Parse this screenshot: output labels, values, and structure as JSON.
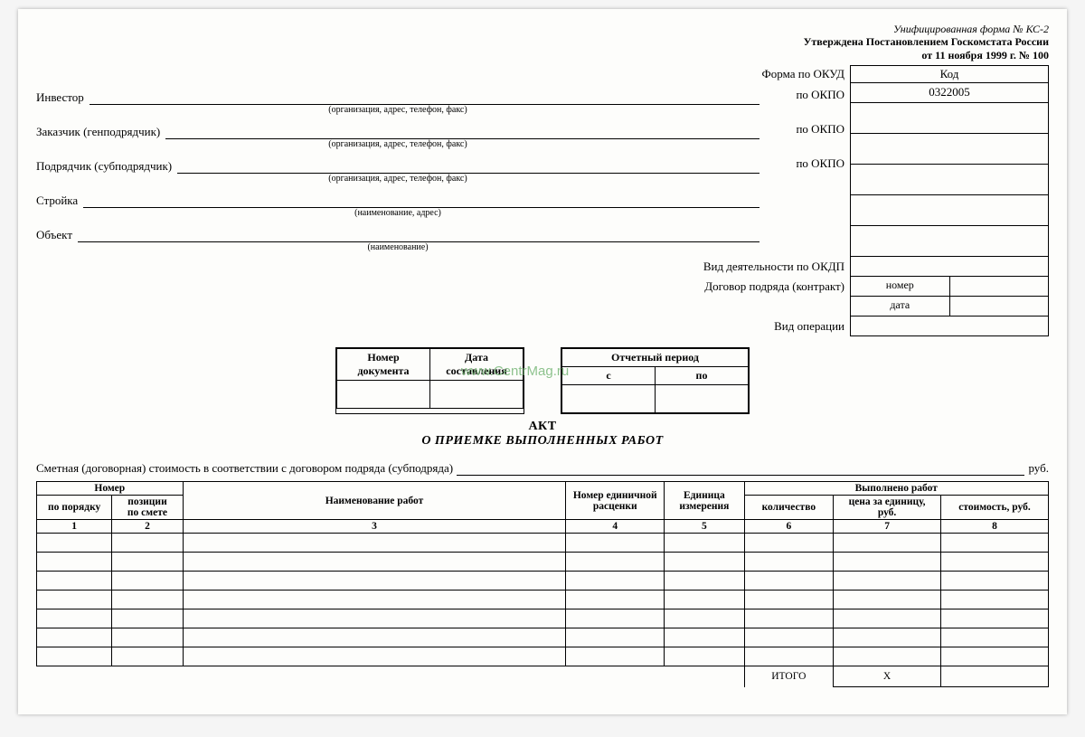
{
  "approval": {
    "line1": "Унифицированная форма № КС-2",
    "line2": "Утверждена Постановлением Госкомстата России",
    "line3": "от 11 ноября 1999 г. № 100"
  },
  "code_header": "Код",
  "okud": {
    "label": "Форма по ОКУД",
    "value": "0322005"
  },
  "fields": {
    "investor": {
      "label": "Инвестор",
      "hint": "(организация, адрес, телефон, факс)",
      "right": "по ОКПО"
    },
    "customer": {
      "label": "Заказчик (генподрядчик)",
      "hint": "(организация, адрес, телефон, факс)",
      "right": "по ОКПО"
    },
    "contractor": {
      "label": "Подрядчик (субподрядчик)",
      "hint": "(организация, адрес, телефон, факс)",
      "right": "по ОКПО"
    },
    "site": {
      "label": "Стройка",
      "hint": "(наименование, адрес)"
    },
    "object": {
      "label": "Объект",
      "hint": "(наименование)"
    }
  },
  "extra": {
    "okdp": "Вид деятельности по ОКДП",
    "contract": "Договор подряда (контракт)",
    "number": "номер",
    "date": "дата",
    "optype": "Вид операции"
  },
  "mid": {
    "doc_num": "Номер\nдокумента",
    "doc_date": "Дата\nсоставления",
    "period": "Отчетный период",
    "from": "с",
    "to": "по"
  },
  "title": {
    "l1": "АКТ",
    "l2": "О ПРИЕМКЕ ВЫПОЛНЕННЫХ РАБОТ"
  },
  "cost_line": {
    "text": "Сметная (договорная) стоимость в соответствии с договором подряда (субподряда)",
    "unit": "руб."
  },
  "table": {
    "headers": {
      "nomer": "Номер",
      "po_poryadku": "по порядку",
      "po_smete": "позиции\nпо смете",
      "naim": "Наименование работ",
      "edin_rasc": "Номер единичной\nрасценки",
      "ed_izm": "Единица\nизмерения",
      "vypolneno": "Выполнено работ",
      "kol": "количество",
      "cena": "цена за единицу,\nруб.",
      "stoim": "стоимость, руб."
    },
    "col_nums": [
      "1",
      "2",
      "3",
      "4",
      "5",
      "6",
      "7",
      "8"
    ],
    "blank_rows": 7,
    "itogo": "ИТОГО",
    "x_mark": "Х"
  },
  "watermark": "www.CentrMag.ru"
}
